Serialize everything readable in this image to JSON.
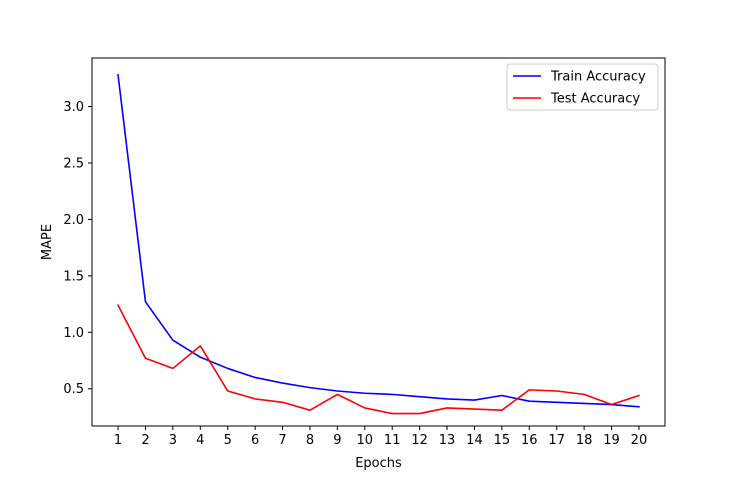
{
  "chart_data": {
    "type": "line",
    "title": "",
    "xlabel": "Epochs",
    "ylabel": "MAPE",
    "x": [
      1,
      2,
      3,
      4,
      5,
      6,
      7,
      8,
      9,
      10,
      11,
      12,
      13,
      14,
      15,
      16,
      17,
      18,
      19,
      20
    ],
    "x_ticks": [
      "1",
      "2",
      "3",
      "4",
      "5",
      "6",
      "7",
      "8",
      "9",
      "10",
      "11",
      "12",
      "13",
      "14",
      "15",
      "16",
      "17",
      "18",
      "19",
      "20"
    ],
    "y_ticks": [
      0.5,
      1.0,
      1.5,
      2.0,
      2.5,
      3.0
    ],
    "y_tick_labels": [
      "0.5",
      "1.0",
      "1.5",
      "2.0",
      "2.5",
      "3.0"
    ],
    "xlim": [
      0.05,
      20.95
    ],
    "ylim": [
      0.17,
      3.43
    ],
    "grid": false,
    "legend_position": "top-right",
    "series": [
      {
        "name": "Train Accuracy",
        "color": "#0000ff",
        "values": [
          3.28,
          1.27,
          0.93,
          0.78,
          0.68,
          0.6,
          0.55,
          0.51,
          0.48,
          0.46,
          0.45,
          0.43,
          0.41,
          0.4,
          0.44,
          0.39,
          0.38,
          0.37,
          0.36,
          0.34
        ]
      },
      {
        "name": "Test Accuracy",
        "color": "#ff0000",
        "values": [
          1.24,
          0.77,
          0.68,
          0.88,
          0.48,
          0.41,
          0.38,
          0.31,
          0.45,
          0.33,
          0.28,
          0.28,
          0.33,
          0.32,
          0.31,
          0.49,
          0.48,
          0.45,
          0.36,
          0.44
        ]
      }
    ]
  }
}
